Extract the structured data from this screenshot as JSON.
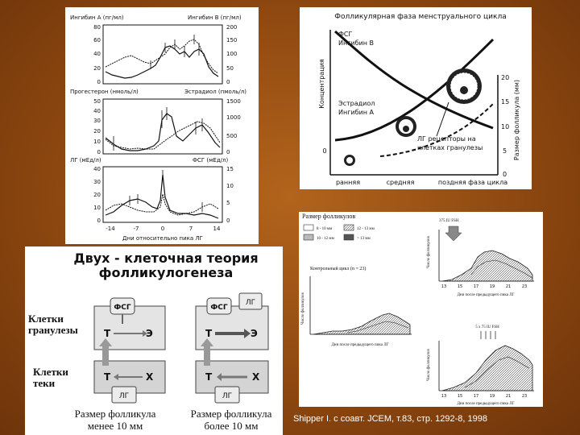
{
  "panel_hormones": {
    "row1": {
      "left_label": "Ингибин А (пг/мл)",
      "right_label": "Ингибин В (пг/мл)",
      "left_ticks": [
        "80",
        "60",
        "40",
        "20",
        "0"
      ],
      "right_ticks": [
        "200",
        "150",
        "100",
        "50",
        "0"
      ]
    },
    "row2": {
      "left_label": "Прогестерон (нмоль/л)",
      "right_label": "Эстрадиол (пмоль/л)",
      "left_ticks": [
        "50",
        "40",
        "30",
        "20",
        "10",
        "0"
      ],
      "right_ticks": [
        "1500",
        "1000",
        "500",
        "0"
      ]
    },
    "row3": {
      "left_label": "ЛГ (мЕд/л)",
      "right_label": "ФСГ (мЕд/л)",
      "left_ticks": [
        "40",
        "30",
        "20",
        "10",
        "0"
      ],
      "right_ticks": [
        "15",
        "10",
        "5",
        "0"
      ]
    },
    "x_ticks": [
      "-14",
      "-7",
      "0",
      "7",
      "14"
    ],
    "x_label": "Дни относительно пика ЛГ"
  },
  "panel_cycle": {
    "title": "Фолликулярная фаза менструального цикла",
    "y_left_label": "Концентрация",
    "y_right_label": "Размер фолликула (мм)",
    "right_ticks": [
      "20",
      "15",
      "10",
      "5",
      "0"
    ],
    "left_zero": "0",
    "label_fsh": "ФСГ",
    "label_inhibin_b": "Ингибин В",
    "label_estradiol": "Эстрадиол",
    "label_inhibin_a": "Ингибин А",
    "label_lh_receptors_1": "ЛГ рецепторы на",
    "label_lh_receptors_2": "клетках гранулезы",
    "x_labels": [
      "ранняя",
      "средняя",
      "поздняя фаза цикла"
    ]
  },
  "panel_theory": {
    "title_line1": "Двух - клеточная теория",
    "title_line2": "фолликулогенеза",
    "granulosa_label_1": "Клетки",
    "granulosa_label_2": "гранулезы",
    "theca_label_1": "Клетки",
    "theca_label_2": "теки",
    "fsh": "ФСГ",
    "lh": "ЛГ",
    "t": "Т",
    "e": "Э",
    "x": "Х",
    "caption_left_1": "Размер фолликула",
    "caption_left_2": "менее 10 мм",
    "caption_right_1": "Размер фолликула",
    "caption_right_2": "более 10 мм"
  },
  "panel_study": {
    "legend_title": "Размер фолликулов",
    "legend_items": [
      "8 - 10 мм",
      "12 - 13 мм",
      "10 - 12 мм",
      "> 13 мм"
    ],
    "top_right_marker": "375 IU FSH",
    "top_right_ylabel": "Число фолликулов",
    "top_right_xticks": [
      "13",
      "15",
      "17",
      "19",
      "21",
      "23"
    ],
    "top_right_xlabel": "Дни после предыдущего пика ЛГ",
    "control_label": "Контрольный цикл (n = 23)",
    "left_ylabel": "Число фолликулов",
    "left_xlabel": "Дни после предыдущего пика ЛГ",
    "bottom_right_marker": "5 х 75 IU FSH",
    "bottom_right_ylabel": "Число фолликулов",
    "bottom_right_xticks": [
      "13",
      "15",
      "17",
      "19",
      "21",
      "23"
    ],
    "bottom_right_xlabel": "Дни после предыдущего пика ЛГ"
  },
  "citation": "Shipper I. с соавт. JCEM, т.83, стр. 1292-8, 1998"
}
